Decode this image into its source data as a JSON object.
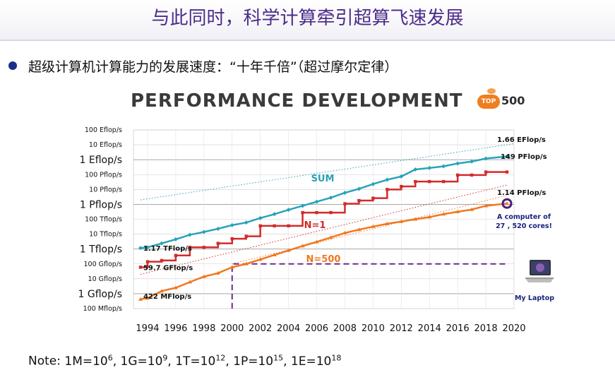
{
  "slide": {
    "title": "与此同时，科学计算牵引超算飞速发展",
    "bullet": "超级计算机计算能力的发展速度：“十年千倍”（超过摩尔定律）"
  },
  "logo": {
    "badge": "TOP",
    "number": "500"
  },
  "note": {
    "prefix": "Note: ",
    "items": [
      {
        "base": "1M=10",
        "exp": "6"
      },
      {
        "base": "1G=10",
        "exp": "9"
      },
      {
        "base": "1T=10",
        "exp": "12"
      },
      {
        "base": "1P=10",
        "exp": "15"
      },
      {
        "base": "1E=10",
        "exp": "18"
      }
    ]
  },
  "chart_data": {
    "type": "line",
    "title": "PERFORMANCE DEVELOPMENT",
    "xlabel": "",
    "ylabel": "",
    "x_range": [
      1993,
      2020
    ],
    "y_scale": "log10",
    "y_unit": "flop/s",
    "y_range": [
      100000000.0,
      1e+20
    ],
    "x_ticks": [
      1994,
      1996,
      1998,
      2000,
      2002,
      2004,
      2006,
      2008,
      2010,
      2012,
      2014,
      2016,
      2018,
      2020
    ],
    "y_ticks": [
      {
        "value": 1e+20,
        "label": "100 Eflop/s",
        "major": false
      },
      {
        "value": 1e+19,
        "label": "10 Eflop/s",
        "major": false
      },
      {
        "value": 1e+18,
        "label": "1 Eflop/s",
        "major": true
      },
      {
        "value": 1e+17,
        "label": "100 Pflop/s",
        "major": false
      },
      {
        "value": 1e+16,
        "label": "10 Pflop/s",
        "major": false
      },
      {
        "value": 1000000000000000.0,
        "label": "1 Pflop/s",
        "major": true
      },
      {
        "value": 100000000000000.0,
        "label": "100 Tflop/s",
        "major": false
      },
      {
        "value": 10000000000000.0,
        "label": "10 Tflop/s",
        "major": false
      },
      {
        "value": 1000000000000.0,
        "label": "1 Tflop/s",
        "major": true
      },
      {
        "value": 100000000000.0,
        "label": "100 Gflop/s",
        "major": false
      },
      {
        "value": 10000000000.0,
        "label": "10 Gflop/s",
        "major": false
      },
      {
        "value": 1000000000.0,
        "label": "1 Gflop/s",
        "major": true
      },
      {
        "value": 100000000.0,
        "label": "100 Mflop/s",
        "major": false
      }
    ],
    "series": [
      {
        "name": "SUM",
        "color": "#29a3b8",
        "marker": "diamond",
        "x": [
          1993.5,
          1994,
          1995,
          1996,
          1997,
          1998,
          1999,
          2000,
          2001,
          2002,
          2003,
          2004,
          2005,
          2006,
          2007,
          2008,
          2009,
          2010,
          2011,
          2012,
          2013,
          2014,
          2015,
          2016,
          2017,
          2018,
          2019.5
        ],
        "y": [
          1170000000000.0,
          1300000000000.0,
          2400000000000.0,
          4500000000000.0,
          9000000000000.0,
          14000000000000.0,
          23000000000000.0,
          40000000000000.0,
          60000000000000.0,
          120000000000000.0,
          220000000000000.0,
          430000000000000.0,
          800000000000000.0,
          1500000000000000.0,
          2800000000000000.0,
          6000000000000000.0,
          1.1e+16,
          2.3e+16,
          4.5e+16,
          7.5e+16,
          2.2e+17,
          2.8e+17,
          3.6e+17,
          5.6e+17,
          7.5e+17,
          1.2e+18,
          1.66e+18
        ]
      },
      {
        "name": "N=1",
        "color": "#d42a2a",
        "marker": "square",
        "x": [
          1993.5,
          1994,
          1995,
          1996,
          1997,
          1998,
          1999,
          2000,
          2001,
          2002,
          2003,
          2004,
          2005,
          2006,
          2007,
          2008,
          2009,
          2010,
          2011,
          2012,
          2013,
          2014,
          2015,
          2016,
          2017,
          2018,
          2019.5
        ],
        "y": [
          59700000000.0,
          140000000000.0,
          170000000000.0,
          370000000000.0,
          1300000000000.0,
          1300000000000.0,
          2400000000000.0,
          4900000000000.0,
          7200000000000.0,
          36000000000000.0,
          36000000000000.0,
          36000000000000.0,
          280000000000000.0,
          280000000000000.0,
          280000000000000.0,
          1100000000000000.0,
          1800000000000000.0,
          2600000000000000.0,
          1e+16,
          1.6e+16,
          3.4e+16,
          3.4e+16,
          3.4e+16,
          9.3e+16,
          9.3e+16,
          1.49e+17,
          1.49e+17
        ]
      },
      {
        "name": "N=500",
        "color": "#f07820",
        "marker": "triangle",
        "x": [
          1993.5,
          1994,
          1995,
          1996,
          1997,
          1998,
          1999,
          2000,
          2001,
          2002,
          2003,
          2004,
          2005,
          2006,
          2007,
          2008,
          2009,
          2010,
          2011,
          2012,
          2013,
          2014,
          2015,
          2016,
          2017,
          2018,
          2019.5
        ],
        "y": [
          422000000.0,
          500000000.0,
          1500000000.0,
          2500000000.0,
          6000000000.0,
          14000000000.0,
          24000000000.0,
          60000000000.0,
          100000000000.0,
          200000000000.0,
          400000000000.0,
          800000000000.0,
          1600000000000.0,
          3000000000000.0,
          6000000000000.0,
          12000000000000.0,
          20000000000000.0,
          32000000000000.0,
          50000000000000.0,
          70000000000000.0,
          100000000000000.0,
          140000000000000.0,
          220000000000000.0,
          320000000000000.0,
          450000000000000.0,
          800000000000000.0,
          1140000000000000.0
        ]
      }
    ],
    "trend_lines": [
      {
        "color": "#29a3b8",
        "x": [
          1993.5,
          2020
        ],
        "y": [
          2000000000000000.0,
          1.2e+19
        ]
      },
      {
        "color": "#d42a2a",
        "x": [
          1993.5,
          2019.5
        ],
        "y": [
          20000000000.0,
          2e+16
        ]
      },
      {
        "color": "#f07820",
        "x": [
          2000,
          2019.5
        ],
        "y": [
          100000000000.0,
          4000000000000000.0
        ]
      }
    ],
    "laptop_line": {
      "x_start": 2000,
      "x_end": 2019.5,
      "y": 100000000000.0,
      "color": "#6b2d86"
    },
    "annotations": [
      {
        "text": "1.66 EFlop/s",
        "x": 2019.5,
        "y": 1.66e+18
      },
      {
        "text": "149 PFlop/s",
        "x": 2019.5,
        "y": 1.49e+17
      },
      {
        "text": "1.14 PFlop/s",
        "x": 2019.5,
        "y": 1140000000000000.0
      },
      {
        "text": "1.17 TFlop/s",
        "x": 1993.5,
        "y": 1170000000000.0
      },
      {
        "text": "59.7 GFlop/s",
        "x": 1993.5,
        "y": 59700000000.0
      },
      {
        "text": "422 MFlop/s",
        "x": 1993.5,
        "y": 422000000.0
      }
    ],
    "callouts": {
      "computer": "A computer of\n27 , 520 cores!",
      "laptop": "My Laptop"
    }
  }
}
